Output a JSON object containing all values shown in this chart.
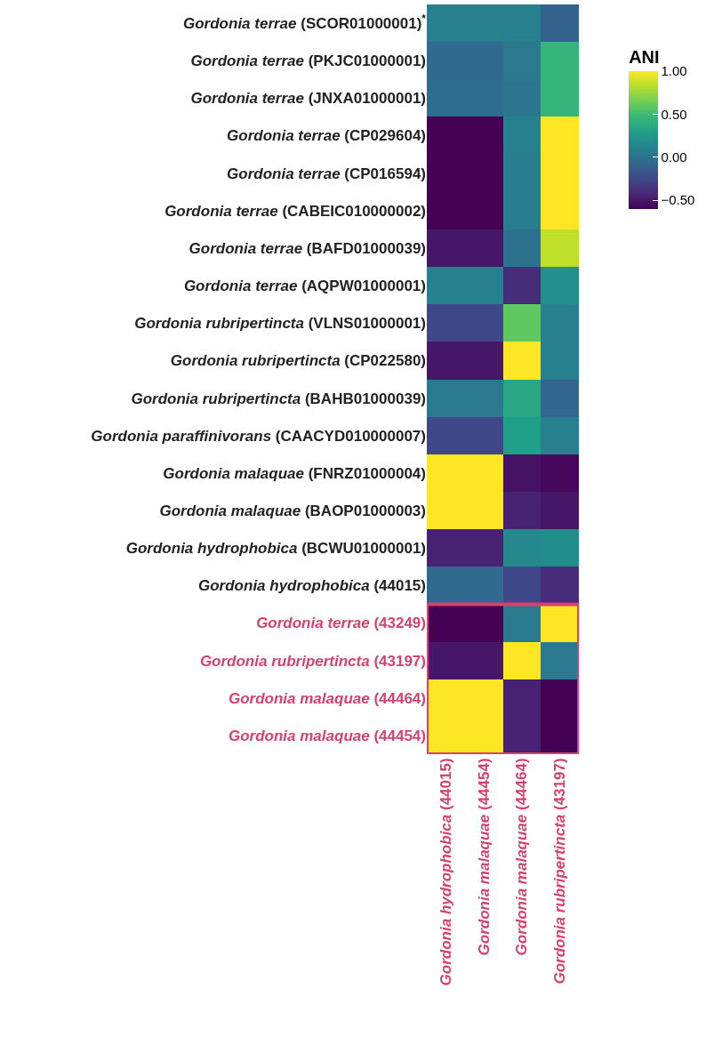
{
  "chart_data": {
    "type": "heatmap",
    "clabel": "ANI",
    "categories": [
      "Gordonia hydrophobica (44015)",
      "Gordonia malaquae (44454)",
      "Gordonia malaquae (44464)",
      "Gordonia rubripertincta (43197)"
    ],
    "y_categories": [
      "Gordonia terrae (SCOR01000001)$^{*}$",
      "Gordonia terrae (PKJC01000001)",
      "Gordonia terrae (JNXA01000001)",
      "Gordonia terrae (CP029604)",
      "Gordonia terrae (CP016594)",
      "Gordonia terrae (CABEIC010000002)",
      "Gordonia terrae (BAFD01000039)",
      "Gordonia terrae (AQPW01000001)",
      "Gordonia rubripertincta (VLNS01000001)",
      "Gordonia rubripertincta (CP022580)",
      "Gordonia rubripertincta (BAHB01000039)",
      "Gordonia paraffinivorans (CAACYD010000007)",
      "Gordonia malaquae (FNRZ01000004)",
      "Gordonia malaquae (BAOP01000003)",
      "Gordonia hydrophobica (BCWU01000001)",
      "Gordonia hydrophobica (44015)",
      "Gordonia terrae (43249)",
      "Gordonia rubripertincta (43197)",
      "Gordonia malaquae (44464)",
      "Gordonia malaquae (44454)"
    ],
    "cells": [
      [
        0.1,
        0.1,
        0.1,
        -0.1
      ],
      [
        -0.05,
        -0.05,
        0.05,
        0.45
      ],
      [
        -0.03,
        -0.03,
        0.02,
        0.45
      ],
      [
        -0.6,
        -0.6,
        0.1,
        1.0
      ],
      [
        -0.6,
        -0.6,
        0.08,
        1.0
      ],
      [
        -0.6,
        -0.6,
        0.08,
        1.0
      ],
      [
        -0.5,
        -0.5,
        0.0,
        0.85
      ],
      [
        0.1,
        0.1,
        -0.4,
        0.2
      ],
      [
        -0.25,
        -0.25,
        0.6,
        0.1
      ],
      [
        -0.5,
        -0.5,
        1.0,
        0.1
      ],
      [
        0.05,
        0.05,
        0.35,
        -0.08
      ],
      [
        -0.25,
        -0.25,
        0.3,
        0.1
      ],
      [
        1.0,
        1.0,
        -0.52,
        -0.57
      ],
      [
        1.0,
        1.0,
        -0.45,
        -0.5
      ],
      [
        -0.45,
        -0.45,
        0.15,
        0.18
      ],
      [
        -0.05,
        -0.05,
        -0.25,
        -0.4
      ],
      [
        -0.6,
        -0.6,
        0.05,
        1.0
      ],
      [
        -0.5,
        -0.5,
        1.0,
        0.05
      ],
      [
        1.0,
        1.0,
        -0.45,
        -0.6
      ],
      [
        1.0,
        1.0,
        -0.45,
        -0.6
      ]
    ],
    "clim": [
      -0.6,
      1.0
    ],
    "cticks": [
      {
        "value": -0.5,
        "label": "−0.50"
      },
      {
        "value": 0,
        "label": "0.00"
      },
      {
        "value": 0.5,
        "label": "0.50"
      },
      {
        "value": 1,
        "label": "1.00"
      }
    ]
  }
}
